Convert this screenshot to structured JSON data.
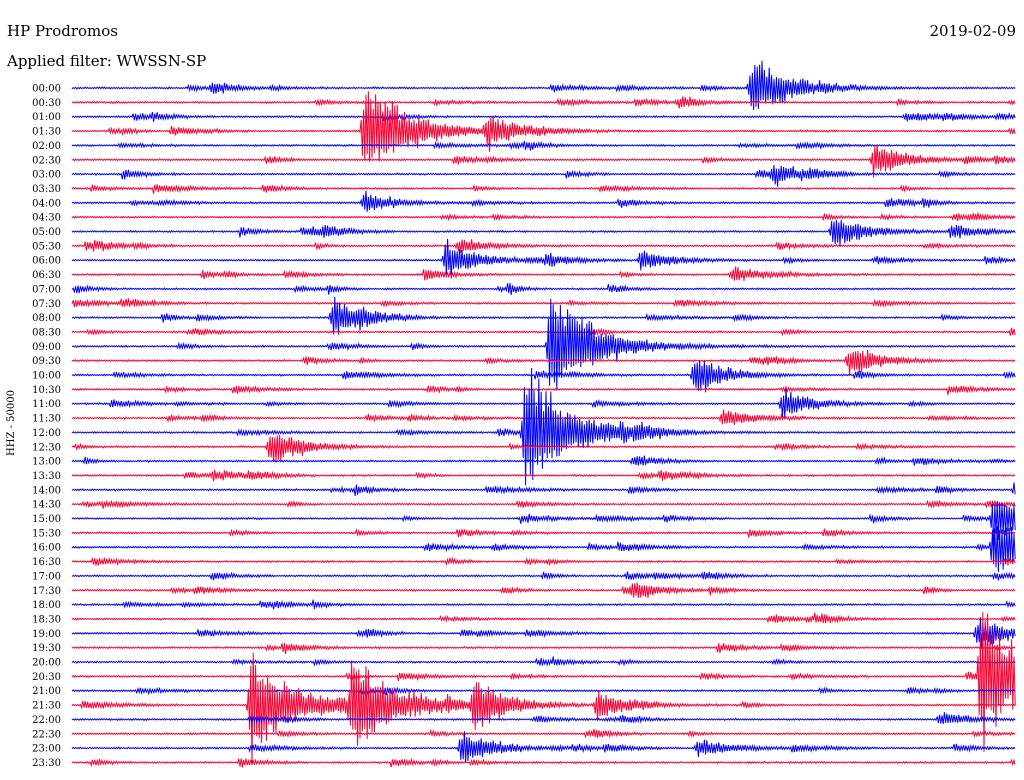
{
  "header": {
    "station": "HP Prodromos",
    "date": "2019-02-09",
    "filter_label": "Applied filter: WWSSN-SP"
  },
  "chart_data": {
    "type": "line",
    "chart_kind": "helicorder",
    "ylabel": "HHZ - 50000",
    "time_labels": [
      "00:00",
      "00:30",
      "01:00",
      "01:30",
      "02:00",
      "02:30",
      "03:00",
      "03:30",
      "04:00",
      "04:30",
      "05:00",
      "05:30",
      "06:00",
      "06:30",
      "07:00",
      "07:30",
      "08:00",
      "08:30",
      "09:00",
      "09:30",
      "10:00",
      "10:30",
      "11:00",
      "11:30",
      "12:00",
      "12:30",
      "13:00",
      "13:30",
      "14:00",
      "14:30",
      "15:00",
      "15:30",
      "16:00",
      "16:30",
      "17:00",
      "17:30",
      "18:00",
      "18:30",
      "19:00",
      "19:30",
      "20:00",
      "20:30",
      "21:00",
      "21:30",
      "22:00",
      "22:30",
      "23:00",
      "23:30"
    ],
    "trace_colors": [
      "#0000ff",
      "#ff0033"
    ],
    "x_range_minutes": [
      0,
      30
    ],
    "events": [
      {
        "row": 0,
        "minute": 4.5,
        "amp": 10,
        "dur": 1.5
      },
      {
        "row": 0,
        "minute": 21.6,
        "amp": 42,
        "dur": 2.5
      },
      {
        "row": 1,
        "minute": 19.3,
        "amp": 8,
        "dur": 1.5
      },
      {
        "row": 2,
        "minute": 26.5,
        "amp": 6,
        "dur": 1.5
      },
      {
        "row": 3,
        "minute": 9.3,
        "amp": 65,
        "dur": 3
      },
      {
        "row": 3,
        "minute": 13.2,
        "amp": 22,
        "dur": 2
      },
      {
        "row": 5,
        "minute": 25.5,
        "amp": 25,
        "dur": 2
      },
      {
        "row": 6,
        "minute": 22.3,
        "amp": 12,
        "dur": 2
      },
      {
        "row": 8,
        "minute": 9.3,
        "amp": 14,
        "dur": 2
      },
      {
        "row": 10,
        "minute": 24.2,
        "amp": 26,
        "dur": 2
      },
      {
        "row": 11,
        "minute": 12.3,
        "amp": 10,
        "dur": 2
      },
      {
        "row": 12,
        "minute": 11.9,
        "amp": 28,
        "dur": 2
      },
      {
        "row": 12,
        "minute": 18.1,
        "amp": 14,
        "dur": 2
      },
      {
        "row": 13,
        "minute": 21.0,
        "amp": 10,
        "dur": 2.5
      },
      {
        "row": 16,
        "minute": 8.3,
        "amp": 28,
        "dur": 2
      },
      {
        "row": 18,
        "minute": 15.2,
        "amp": 70,
        "dur": 3
      },
      {
        "row": 19,
        "minute": 24.7,
        "amp": 16,
        "dur": 2
      },
      {
        "row": 20,
        "minute": 19.8,
        "amp": 28,
        "dur": 2
      },
      {
        "row": 22,
        "minute": 22.6,
        "amp": 20,
        "dur": 2
      },
      {
        "row": 23,
        "minute": 20.7,
        "amp": 14,
        "dur": 2
      },
      {
        "row": 24,
        "minute": 14.4,
        "amp": 85,
        "dur": 3
      },
      {
        "row": 25,
        "minute": 6.3,
        "amp": 26,
        "dur": 2
      },
      {
        "row": 28,
        "minute": 30.0,
        "amp": 14,
        "dur": 2
      },
      {
        "row": 30,
        "minute": 29.3,
        "amp": 38,
        "dur": 3
      },
      {
        "row": 32,
        "minute": 29.3,
        "amp": 45,
        "dur": 3
      },
      {
        "row": 35,
        "minute": 17.8,
        "amp": 12,
        "dur": 2
      },
      {
        "row": 38,
        "minute": 28.8,
        "amp": 22,
        "dur": 2
      },
      {
        "row": 41,
        "minute": 28.9,
        "amp": 95,
        "dur": 3
      },
      {
        "row": 43,
        "minute": 5.7,
        "amp": 70,
        "dur": 3
      },
      {
        "row": 43,
        "minute": 8.9,
        "amp": 55,
        "dur": 3
      },
      {
        "row": 43,
        "minute": 12.8,
        "amp": 35,
        "dur": 2
      },
      {
        "row": 43,
        "minute": 16.7,
        "amp": 20,
        "dur": 2
      },
      {
        "row": 44,
        "minute": 27.6,
        "amp": 10,
        "dur": 2
      },
      {
        "row": 46,
        "minute": 12.4,
        "amp": 25,
        "dur": 2
      },
      {
        "row": 46,
        "minute": 19.9,
        "amp": 12,
        "dur": 2.5
      }
    ]
  }
}
